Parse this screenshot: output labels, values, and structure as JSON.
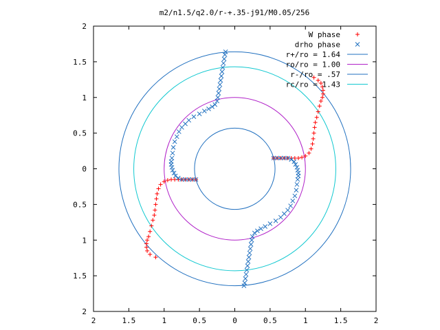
{
  "chart_data": {
    "type": "scatter",
    "title": "m2/n1.5/q2.0/r-+.35-j91/M0.05/256",
    "xlim": [
      -2,
      2
    ],
    "ylim": [
      -2,
      2
    ],
    "xticks": [
      -2,
      -1.5,
      -1,
      -0.5,
      0,
      0.5,
      1,
      1.5,
      2
    ],
    "yticks": [
      -2,
      -1.5,
      -1,
      -0.5,
      0,
      0.5,
      1,
      1.5,
      2
    ],
    "x_tick_labels": [
      "2",
      "1.5",
      "1",
      "0.5",
      "0",
      "0.5",
      "1",
      "1.5",
      "2"
    ],
    "y_tick_labels": [
      "2",
      "1.5",
      "1",
      "0.5",
      "0",
      "0.5",
      "1",
      "1.5",
      "2"
    ],
    "grid": false,
    "legend_position": "top-right",
    "circles": [
      {
        "name": "r+/ro = 1.64",
        "radius": 1.64,
        "color": "#1f6fbf"
      },
      {
        "name": "ro/ro = 1.00",
        "radius": 1.0,
        "color": "#b020c8"
      },
      {
        "name": "r-/ro = .57",
        "radius": 0.57,
        "color": "#1f6fbf"
      },
      {
        "name": "rc/ro = 1.43",
        "radius": 1.43,
        "color": "#10c8d0"
      }
    ],
    "series": [
      {
        "name": "W phase",
        "marker": "plus",
        "color": "#ff0000",
        "points": [
          [
            0.55,
            0.15
          ],
          [
            0.6,
            0.15
          ],
          [
            0.65,
            0.15
          ],
          [
            0.7,
            0.15
          ],
          [
            0.75,
            0.15
          ],
          [
            0.8,
            0.15
          ],
          [
            0.85,
            0.15
          ],
          [
            0.9,
            0.15
          ],
          [
            0.95,
            0.16
          ],
          [
            1.0,
            0.18
          ],
          [
            1.05,
            0.22
          ],
          [
            1.08,
            0.28
          ],
          [
            1.1,
            0.35
          ],
          [
            1.11,
            0.42
          ],
          [
            1.12,
            0.5
          ],
          [
            1.13,
            0.58
          ],
          [
            1.14,
            0.65
          ],
          [
            1.16,
            0.72
          ],
          [
            1.18,
            0.8
          ],
          [
            1.2,
            0.88
          ],
          [
            1.22,
            0.95
          ],
          [
            1.24,
            1.0
          ],
          [
            1.25,
            1.05
          ],
          [
            1.25,
            1.1
          ],
          [
            1.24,
            1.15
          ],
          [
            1.22,
            1.2
          ],
          [
            1.18,
            1.24
          ],
          [
            1.12,
            1.28
          ],
          [
            -0.55,
            -0.15
          ],
          [
            -0.6,
            -0.15
          ],
          [
            -0.65,
            -0.15
          ],
          [
            -0.7,
            -0.15
          ],
          [
            -0.75,
            -0.15
          ],
          [
            -0.8,
            -0.15
          ],
          [
            -0.85,
            -0.15
          ],
          [
            -0.9,
            -0.15
          ],
          [
            -0.95,
            -0.16
          ],
          [
            -1.0,
            -0.18
          ],
          [
            -1.05,
            -0.22
          ],
          [
            -1.08,
            -0.28
          ],
          [
            -1.1,
            -0.35
          ],
          [
            -1.11,
            -0.42
          ],
          [
            -1.12,
            -0.5
          ],
          [
            -1.13,
            -0.58
          ],
          [
            -1.14,
            -0.65
          ],
          [
            -1.16,
            -0.72
          ],
          [
            -1.18,
            -0.8
          ],
          [
            -1.2,
            -0.88
          ],
          [
            -1.22,
            -0.95
          ],
          [
            -1.24,
            -1.0
          ],
          [
            -1.25,
            -1.05
          ],
          [
            -1.25,
            -1.1
          ],
          [
            -1.24,
            -1.15
          ],
          [
            -1.2,
            -1.2
          ],
          [
            -1.12,
            -1.24
          ]
        ]
      },
      {
        "name": "drho phase",
        "marker": "cross",
        "color": "#1f6fbf",
        "points": [
          [
            0.55,
            0.15
          ],
          [
            0.6,
            0.15
          ],
          [
            0.65,
            0.15
          ],
          [
            0.7,
            0.15
          ],
          [
            0.75,
            0.15
          ],
          [
            0.8,
            0.13
          ],
          [
            0.84,
            0.1
          ],
          [
            0.86,
            0.06
          ],
          [
            0.88,
            0.02
          ],
          [
            0.89,
            -0.02
          ],
          [
            0.9,
            -0.06
          ],
          [
            0.9,
            -0.1
          ],
          [
            0.89,
            -0.15
          ],
          [
            0.88,
            -0.22
          ],
          [
            0.87,
            -0.3
          ],
          [
            0.85,
            -0.38
          ],
          [
            0.82,
            -0.45
          ],
          [
            0.79,
            -0.52
          ],
          [
            0.75,
            -0.58
          ],
          [
            0.7,
            -0.63
          ],
          [
            0.65,
            -0.68
          ],
          [
            0.58,
            -0.73
          ],
          [
            0.5,
            -0.77
          ],
          [
            0.43,
            -0.81
          ],
          [
            0.37,
            -0.84
          ],
          [
            0.32,
            -0.87
          ],
          [
            0.28,
            -0.9
          ],
          [
            0.25,
            -0.95
          ],
          [
            0.24,
            -1.0
          ],
          [
            0.23,
            -1.06
          ],
          [
            0.22,
            -1.12
          ],
          [
            0.21,
            -1.18
          ],
          [
            0.2,
            -1.24
          ],
          [
            0.19,
            -1.3
          ],
          [
            0.18,
            -1.36
          ],
          [
            0.17,
            -1.42
          ],
          [
            0.16,
            -1.48
          ],
          [
            0.15,
            -1.54
          ],
          [
            0.14,
            -1.6
          ],
          [
            0.13,
            -1.64
          ],
          [
            -0.55,
            -0.15
          ],
          [
            -0.6,
            -0.15
          ],
          [
            -0.65,
            -0.15
          ],
          [
            -0.7,
            -0.15
          ],
          [
            -0.75,
            -0.15
          ],
          [
            -0.8,
            -0.13
          ],
          [
            -0.84,
            -0.1
          ],
          [
            -0.86,
            -0.06
          ],
          [
            -0.88,
            -0.02
          ],
          [
            -0.89,
            0.02
          ],
          [
            -0.9,
            0.06
          ],
          [
            -0.9,
            0.1
          ],
          [
            -0.89,
            0.15
          ],
          [
            -0.88,
            0.22
          ],
          [
            -0.87,
            0.3
          ],
          [
            -0.85,
            0.38
          ],
          [
            -0.82,
            0.45
          ],
          [
            -0.79,
            0.52
          ],
          [
            -0.75,
            0.58
          ],
          [
            -0.7,
            0.63
          ],
          [
            -0.65,
            0.68
          ],
          [
            -0.58,
            0.73
          ],
          [
            -0.5,
            0.77
          ],
          [
            -0.43,
            0.81
          ],
          [
            -0.37,
            0.84
          ],
          [
            -0.32,
            0.87
          ],
          [
            -0.28,
            0.9
          ],
          [
            -0.25,
            0.95
          ],
          [
            -0.24,
            1.0
          ],
          [
            -0.23,
            1.06
          ],
          [
            -0.22,
            1.12
          ],
          [
            -0.21,
            1.18
          ],
          [
            -0.2,
            1.24
          ],
          [
            -0.19,
            1.3
          ],
          [
            -0.18,
            1.36
          ],
          [
            -0.17,
            1.42
          ],
          [
            -0.16,
            1.48
          ],
          [
            -0.15,
            1.54
          ],
          [
            -0.14,
            1.6
          ],
          [
            -0.13,
            1.64
          ]
        ]
      }
    ]
  }
}
